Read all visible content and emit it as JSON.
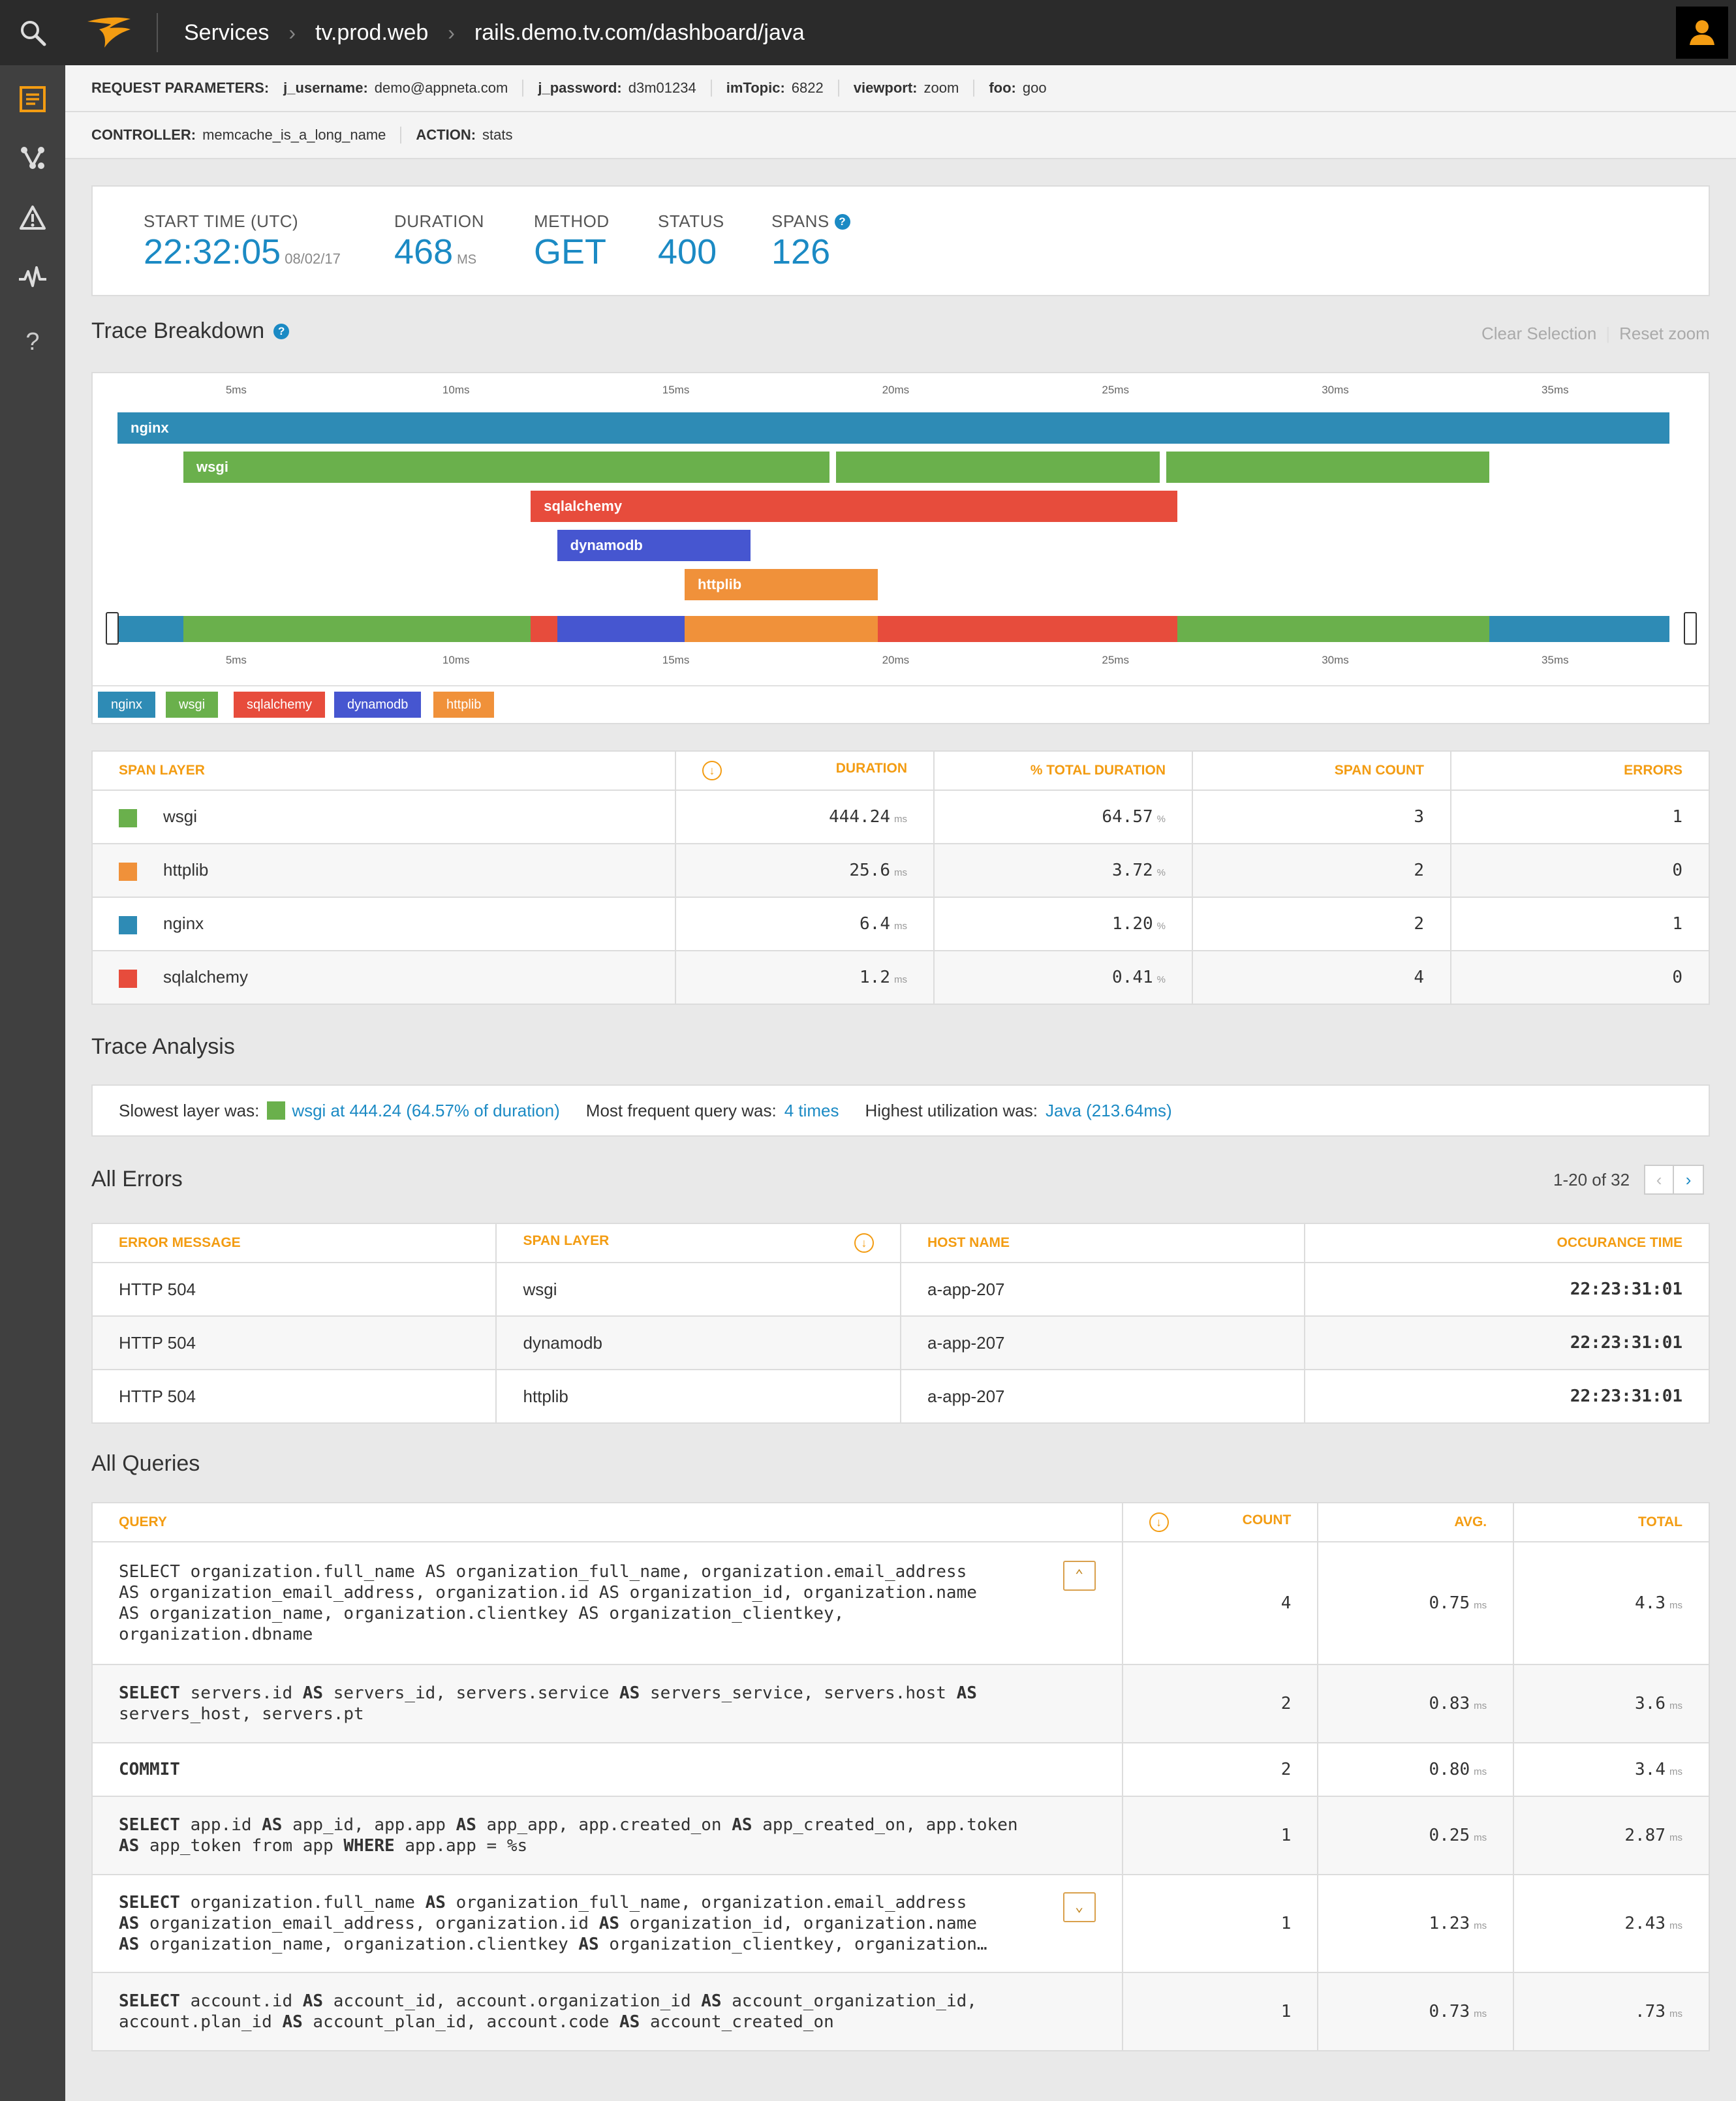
{
  "breadcrumbs": [
    "Services",
    "tv.prod.web",
    "rails.demo.tv.com/dashboard/java"
  ],
  "request_params": {
    "label": "REQUEST PARAMETERS:",
    "items": [
      {
        "key": "j_username:",
        "value": "demo@appneta.com"
      },
      {
        "key": "j_password:",
        "value": "d3m01234"
      },
      {
        "key": "imTopic:",
        "value": "6822"
      },
      {
        "key": "viewport:",
        "value": "zoom"
      },
      {
        "key": "foo:",
        "value": "goo"
      }
    ]
  },
  "controller": {
    "key": "CONTROLLER:",
    "value": "memcache_is_a_long_name",
    "action_key": "ACTION:",
    "action_value": "stats"
  },
  "summary": {
    "start_time_label": "START TIME (UTC)",
    "start_time": "22:32:05",
    "start_date": "08/02/17",
    "duration_label": "DURATION",
    "duration": "468",
    "duration_unit": "MS",
    "method_label": "METHOD",
    "method": "GET",
    "status_label": "STATUS",
    "status": "400",
    "spans_label": "SPANS",
    "spans": "126"
  },
  "trace_breakdown": {
    "title": "Trace Breakdown",
    "clear_selection": "Clear Selection",
    "reset_zoom": "Reset zoom",
    "ticks": [
      "5ms",
      "10ms",
      "15ms",
      "20ms",
      "25ms",
      "30ms",
      "35ms"
    ],
    "tick_values_ms": [
      5,
      10,
      15,
      20,
      25,
      30,
      35
    ],
    "domain_ms": [
      2.3,
      37.6
    ],
    "colors": {
      "nginx": "#2e8bb5",
      "wsgi": "#6ab04c",
      "sqlalchemy": "#e74c3c",
      "dynamodb": "#4656d0",
      "httplib": "#f0913a"
    },
    "spans": [
      {
        "layer": "nginx",
        "label": "nginx",
        "start_ms": 2.3,
        "end_ms": 37.6,
        "row": 0
      },
      {
        "layer": "wsgi",
        "label": "wsgi",
        "start_ms": 3.8,
        "end_ms": 18.5,
        "row": 1
      },
      {
        "layer": "wsgi",
        "label": "",
        "start_ms": 18.65,
        "end_ms": 26.0,
        "row": 1
      },
      {
        "layer": "wsgi",
        "label": "",
        "start_ms": 26.15,
        "end_ms": 33.5,
        "row": 1
      },
      {
        "layer": "sqlalchemy",
        "label": "sqlalchemy",
        "start_ms": 11.7,
        "end_ms": 26.4,
        "row": 2
      },
      {
        "layer": "dynamodb",
        "label": "dynamodb",
        "start_ms": 12.3,
        "end_ms": 16.7,
        "row": 3
      },
      {
        "layer": "httplib",
        "label": "httplib",
        "start_ms": 15.2,
        "end_ms": 19.6,
        "row": 4
      }
    ],
    "overview": [
      {
        "layer": "nginx",
        "start_ms": 2.3,
        "end_ms": 3.8
      },
      {
        "layer": "wsgi",
        "start_ms": 3.8,
        "end_ms": 11.7
      },
      {
        "layer": "sqlalchemy",
        "start_ms": 11.7,
        "end_ms": 12.3
      },
      {
        "layer": "dynamodb",
        "start_ms": 12.3,
        "end_ms": 15.2
      },
      {
        "layer": "httplib",
        "start_ms": 15.2,
        "end_ms": 19.6
      },
      {
        "layer": "sqlalchemy",
        "start_ms": 19.6,
        "end_ms": 26.4
      },
      {
        "layer": "wsgi",
        "start_ms": 26.4,
        "end_ms": 33.5
      },
      {
        "layer": "nginx",
        "start_ms": 33.5,
        "end_ms": 37.6
      }
    ],
    "legend": [
      "nginx",
      "wsgi",
      "sqlalchemy",
      "dynamodb",
      "httplib"
    ]
  },
  "span_table": {
    "headers": [
      "SPAN LAYER",
      "DURATION",
      "% TOTAL DURATION",
      "SPAN COUNT",
      "ERRORS"
    ],
    "rows": [
      {
        "layer": "wsgi",
        "color": "#6ab04c",
        "duration": "444.24",
        "duration_unit": "ms",
        "pct": "64.57",
        "pct_unit": "%",
        "count": "3",
        "errors": "1"
      },
      {
        "layer": "httplib",
        "color": "#f0913a",
        "duration": "25.6",
        "duration_unit": "ms",
        "pct": "3.72",
        "pct_unit": "%",
        "count": "2",
        "errors": "0"
      },
      {
        "layer": "nginx",
        "color": "#2e8bb5",
        "duration": "6.4",
        "duration_unit": "ms",
        "pct": "1.20",
        "pct_unit": "%",
        "count": "2",
        "errors": "1"
      },
      {
        "layer": "sqlalchemy",
        "color": "#e74c3c",
        "duration": "1.2",
        "duration_unit": "ms",
        "pct": "0.41",
        "pct_unit": "%",
        "count": "4",
        "errors": "0"
      }
    ]
  },
  "trace_analysis": {
    "title": "Trace Analysis",
    "slowest_label": "Slowest layer was:",
    "slowest_value": "wsgi at 444.24 (64.57% of duration)",
    "frequent_label": "Most frequent query was:",
    "frequent_value": "4 times",
    "utilization_label": "Highest utilization was:",
    "utilization_value": "Java (213.64ms)"
  },
  "errors": {
    "title": "All Errors",
    "pagination": "1-20 of 32",
    "headers": [
      "ERROR MESSAGE",
      "SPAN LAYER",
      "HOST NAME",
      "OCCURANCE TIME"
    ],
    "rows": [
      {
        "message": "HTTP 504",
        "layer": "wsgi",
        "host": "a-app-207",
        "time": "22:23:31:01"
      },
      {
        "message": "HTTP 504",
        "layer": "dynamodb",
        "host": "a-app-207",
        "time": "22:23:31:01"
      },
      {
        "message": "HTTP 504",
        "layer": "httplib",
        "host": "a-app-207",
        "time": "22:23:31:01"
      }
    ]
  },
  "queries": {
    "title": "All Queries",
    "headers": [
      "QUERY",
      "COUNT",
      "AVG.",
      "TOTAL"
    ],
    "rows": [
      {
        "line1": "SELECT organization.full_name AS organization_full_name, organization.email_address",
        "line2": "AS organization_email_address, organization.id AS organization_id, organization.name",
        "line3": "AS organization_name, organization.clientkey AS organization_clientkey,",
        "line4": "organization.dbname",
        "count": "4",
        "avg": "0.75",
        "avg_unit": "ms",
        "total": "4.3",
        "total_unit": "ms"
      },
      {
        "line1": "SELECT servers.id AS servers_id, servers.service AS servers_service, servers.host AS",
        "line2": "servers_host, servers.pt",
        "count": "2",
        "avg": "0.83",
        "avg_unit": "ms",
        "total": "3.6",
        "total_unit": "ms"
      },
      {
        "line1": "COMMIT",
        "count": "2",
        "avg": "0.80",
        "avg_unit": "ms",
        "total": "3.4",
        "total_unit": "ms"
      },
      {
        "line1": "SELECT app.id AS app_id, app.app AS app_app, app.created_on AS app_created_on, app.token",
        "line2": "AS app_token from app WHERE app.app = %s",
        "count": "1",
        "avg": "0.25",
        "avg_unit": "ms",
        "total": "2.87",
        "total_unit": "ms"
      },
      {
        "line1": "SELECT organization.full_name AS organization_full_name, organization.email_address",
        "line2": "AS organization_email_address, organization.id AS organization_id, organization.name",
        "line3": "AS organization_name, organization.clientkey AS organization_clientkey, organization…",
        "count": "1",
        "avg": "1.23",
        "avg_unit": "ms",
        "total": "2.43",
        "total_unit": "ms"
      },
      {
        "line1": "SELECT account.id AS account_id, account.organization_id AS account_organization_id,",
        "line2": "account.plan_id AS account_plan_id, account.code AS account_created_on",
        "count": "1",
        "avg": "0.73",
        "avg_unit": "ms",
        "total": ".73",
        "total_unit": "ms"
      }
    ]
  },
  "icons": {
    "sidebar": [
      "search-icon",
      "list-icon",
      "graph-icon",
      "warning-icon",
      "pulse-icon",
      "help-icon"
    ],
    "accent": "#f39c12",
    "link": "#1b8ac4"
  }
}
